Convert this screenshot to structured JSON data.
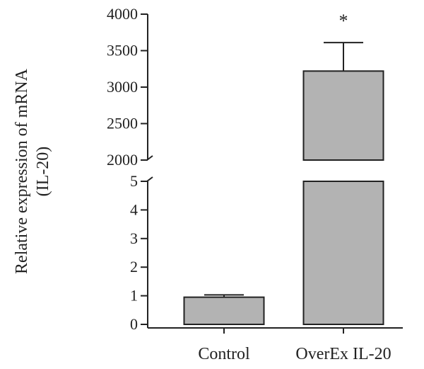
{
  "chart_data": {
    "type": "bar",
    "categories": [
      "Control",
      "OverEx IL-20"
    ],
    "values": [
      0.95,
      3220
    ],
    "errors": [
      0.08,
      390
    ],
    "ylabel_lines": [
      "Relative expression of mRNA",
      "(IL-20)"
    ],
    "broken_axis": true,
    "lower_range": [
      0,
      5
    ],
    "upper_range": [
      2000,
      4000
    ],
    "lower_ticks": [
      0,
      1,
      2,
      3,
      4,
      5
    ],
    "upper_ticks": [
      2000,
      2500,
      3000,
      3500,
      4000
    ],
    "annotations": [
      {
        "category": "OverEx IL-20",
        "text": "*"
      }
    ],
    "colors": {
      "bar": "#b3b3b3",
      "line": "#222222"
    },
    "grid": false,
    "legend": "none"
  }
}
